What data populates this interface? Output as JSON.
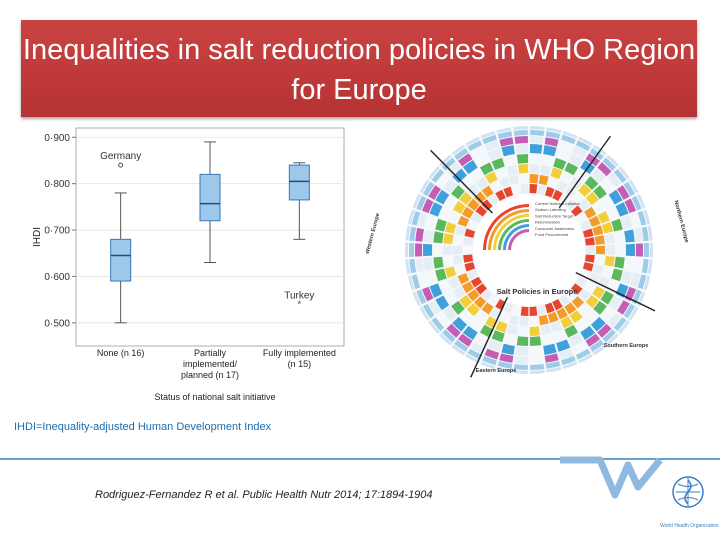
{
  "slide": {
    "title": "Inequalities in salt reduction policies in WHO Region for Europe",
    "ihdi_note": "IHDI=Inequality-adjusted Human Development Index",
    "citation": "Rodriguez-Fernandez R et al. Public Health Nutr 2014; 17:1894-1904",
    "who_label": "World Health Organization",
    "colors": {
      "title_bg": "#b83333",
      "accent_blue": "#1d6cb0",
      "box_fill": "#9cc8ec",
      "box_stroke": "#3a78b5"
    }
  },
  "chart_data": [
    {
      "type": "boxplot",
      "title": "",
      "xlabel": "Status of national salt initiative",
      "ylabel": "IHDI",
      "ylim": [
        0.45,
        0.92
      ],
      "yticks": [
        "0·500",
        "0·600",
        "0·700",
        "0·800",
        "0·900"
      ],
      "ytick_values": [
        0.5,
        0.6,
        0.7,
        0.8,
        0.9
      ],
      "grid": true,
      "categories": [
        "None (n 16)",
        "Partially implemented/ planned (n 17)",
        "Fully implemented (n 15)"
      ],
      "category_lines": [
        [
          "None (n 16)"
        ],
        [
          "Partially",
          "implemented/",
          "planned (n 17)"
        ],
        [
          "Fully implemented",
          "(n 15)"
        ]
      ],
      "boxes": [
        {
          "min": 0.5,
          "q1": 0.59,
          "median": 0.645,
          "q3": 0.68,
          "max": 0.78
        },
        {
          "min": 0.63,
          "q1": 0.72,
          "median": 0.757,
          "q3": 0.82,
          "max": 0.89
        },
        {
          "min": 0.68,
          "q1": 0.765,
          "median": 0.805,
          "q3": 0.84,
          "max": 0.845
        }
      ],
      "outliers": [
        {
          "category": 0,
          "value": 0.84,
          "label": "Germany"
        },
        {
          "category": 2,
          "value": 0.54,
          "label": "Turkey"
        }
      ]
    },
    {
      "type": "circular-heatmap",
      "center_title": "Salt Policies in Europe",
      "legend": [
        "Current National Initiative",
        "Sodium Labelling",
        "Salt Reduction Target",
        "Reformulation",
        "Consumer Awareness",
        "Food Procurement"
      ],
      "legend_colors": [
        "#e8452f",
        "#f39c2a",
        "#f2cf3a",
        "#5cb85c",
        "#3fa0dc",
        "#c65db5"
      ],
      "region_labels": [
        "Western Europe",
        "Northern Europe",
        "Eastern Europe",
        "Southern Europe"
      ],
      "ring_colors": [
        "#e8452f",
        "#f39c2a",
        "#f2cf3a",
        "#5cb85c",
        "#3fa0dc",
        "#c65db5",
        "#9ecbe8",
        "#cfe3f2"
      ]
    }
  ]
}
